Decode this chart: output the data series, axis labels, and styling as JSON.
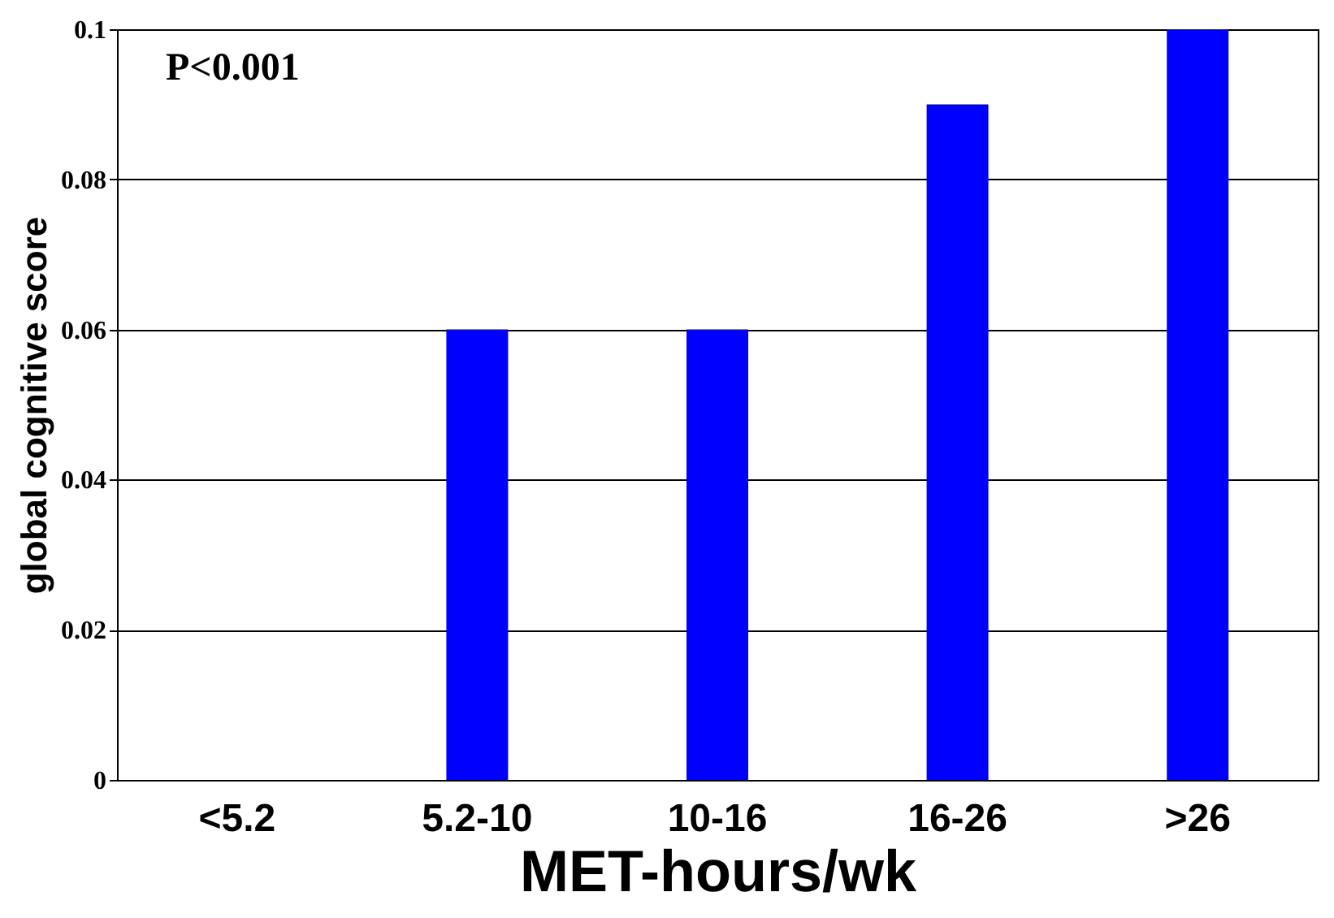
{
  "chart_data": {
    "type": "bar",
    "xlabel": "MET-hours/wk",
    "ylabel": "global cognitive score",
    "categories": [
      "<5.2",
      "5.2-10",
      "10-16",
      "16-26",
      ">26"
    ],
    "values": [
      0,
      0.06,
      0.06,
      0.09,
      0.1
    ],
    "color": "#0000ff",
    "ylim": [
      0,
      0.1
    ],
    "yticks": [
      0,
      0.02,
      0.04,
      0.06,
      0.08,
      0.1
    ],
    "grid": "y",
    "annotations": [
      "P<0.001"
    ]
  }
}
